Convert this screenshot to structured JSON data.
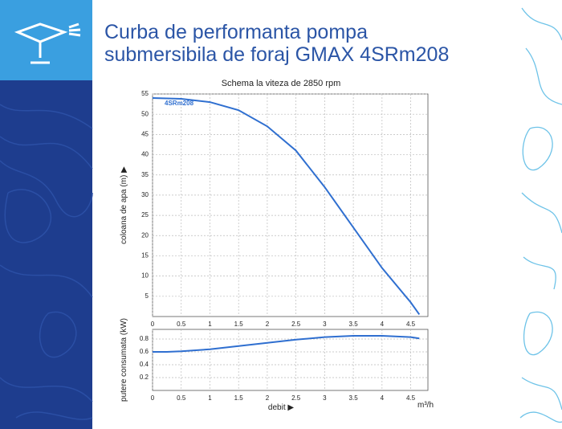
{
  "header": {
    "title": "Curba de performanta pompa submersibila de foraj GMAX 4SRm208"
  },
  "chart_data": [
    {
      "type": "line",
      "title": "Schema la viteza de 2850 rpm",
      "x": [
        0,
        0.5,
        1,
        1.5,
        2,
        2.5,
        3,
        3.5,
        4,
        4.5,
        4.65
      ],
      "series": [
        {
          "name": "4SRm208",
          "color": "#2f6fd0",
          "values": [
            54,
            53.8,
            53,
            51,
            47,
            41,
            32,
            22,
            12,
            3.5,
            0.5
          ]
        }
      ],
      "xlim": [
        0,
        4.8
      ],
      "xticks": [
        0,
        0.5,
        1,
        1.5,
        2,
        2.5,
        3,
        3.5,
        4,
        4.5
      ],
      "ylim": [
        0,
        55
      ],
      "yticks": [
        5,
        10,
        15,
        20,
        25,
        30,
        35,
        40,
        45,
        50,
        55
      ],
      "y_label": "coloana de apa (m) ▶",
      "grid": true
    },
    {
      "type": "line",
      "x": [
        0,
        0.25,
        0.5,
        1,
        1.5,
        2,
        2.5,
        3,
        3.5,
        4,
        4.5,
        4.65
      ],
      "series": [
        {
          "color": "#2f6fd0",
          "values": [
            0.6,
            0.6,
            0.61,
            0.64,
            0.69,
            0.74,
            0.79,
            0.83,
            0.85,
            0.85,
            0.83,
            0.81
          ]
        }
      ],
      "xlim": [
        0,
        4.8
      ],
      "xticks": [
        0,
        0.5,
        1,
        1.5,
        2,
        2.5,
        3,
        3.5,
        4,
        4.5
      ],
      "ylim": [
        0,
        0.95
      ],
      "yticks": [
        0.2,
        0.4,
        0.6,
        0.8
      ],
      "y_label": "putere consumata (kW)",
      "x_label": "debit ▶",
      "x_unit": "m³/h",
      "grid": true
    }
  ]
}
